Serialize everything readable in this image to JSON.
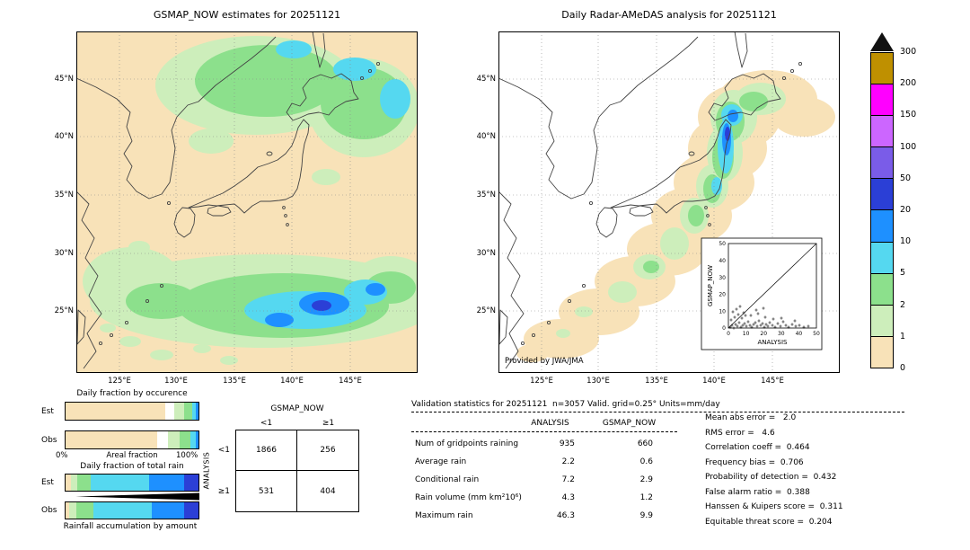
{
  "left_map": {
    "title": "GSMAP_NOW estimates for 20251121",
    "lat_ticks": [
      "45°N",
      "40°N",
      "35°N",
      "30°N",
      "25°N"
    ],
    "lon_ticks": [
      "125°E",
      "130°E",
      "135°E",
      "140°E",
      "145°E"
    ]
  },
  "right_map": {
    "title": "Daily Radar-AMeDAS analysis for 20251121",
    "credit": "Provided by JWA/JMA",
    "lat_ticks": [
      "45°N",
      "40°N",
      "35°N",
      "30°N",
      "25°N"
    ],
    "lon_ticks": [
      "125°E",
      "130°E",
      "135°E",
      "140°E",
      "145°E"
    ],
    "inset": {
      "xlabel": "ANALYSIS",
      "ylabel": "GSMAP_NOW",
      "x_ticks": [
        "0",
        "10",
        "20",
        "30",
        "40",
        "50"
      ],
      "y_ticks": [
        "0",
        "10",
        "20",
        "30",
        "40",
        "50"
      ]
    }
  },
  "colorbar": {
    "levels": [
      "300",
      "200",
      "150",
      "100",
      "50",
      "20",
      "10",
      "5",
      "2",
      "1",
      "0"
    ],
    "colors": [
      "#BF9000",
      "#FF00FF",
      "#CC66FF",
      "#7A5CE8",
      "#2B3FD6",
      "#1E90FF",
      "#55D8F0",
      "#8CE08C",
      "#CDEEBB",
      "#F8E2B8"
    ]
  },
  "occurrence": {
    "title": "Daily fraction by occurence",
    "row_labels": [
      "Est",
      "Obs"
    ],
    "x_left": "0%",
    "x_center": "Areal fraction",
    "x_right": "100%",
    "est_segments": [
      {
        "pct": 75,
        "color": "#F8E2B8"
      },
      {
        "pct": 7,
        "color": "#FFFFFF",
        "hatch": true
      },
      {
        "pct": 7,
        "color": "#CDEEBB"
      },
      {
        "pct": 6,
        "color": "#8CE08C"
      },
      {
        "pct": 3,
        "color": "#55D8F0"
      },
      {
        "pct": 2,
        "color": "#1E90FF"
      }
    ],
    "obs_segments": [
      {
        "pct": 69,
        "color": "#F8E2B8"
      },
      {
        "pct": 8,
        "color": "#FFFFFF",
        "hatch": true
      },
      {
        "pct": 9,
        "color": "#CDEEBB"
      },
      {
        "pct": 8,
        "color": "#8CE08C"
      },
      {
        "pct": 4,
        "color": "#55D8F0"
      },
      {
        "pct": 2,
        "color": "#1E90FF"
      }
    ]
  },
  "total_rain": {
    "title": "Daily fraction of total rain",
    "row_labels": [
      "Est",
      "Obs"
    ],
    "footer": "Rainfall accumulation by amount",
    "est_segments": [
      {
        "pct": 4,
        "color": "#F8E2B8"
      },
      {
        "pct": 5,
        "color": "#CDEEBB"
      },
      {
        "pct": 10,
        "color": "#8CE08C"
      },
      {
        "pct": 44,
        "color": "#55D8F0"
      },
      {
        "pct": 26,
        "color": "#1E90FF"
      },
      {
        "pct": 11,
        "color": "#2B3FD6"
      }
    ],
    "obs_segments": [
      {
        "pct": 3,
        "color": "#F8E2B8"
      },
      {
        "pct": 5,
        "color": "#CDEEBB"
      },
      {
        "pct": 13,
        "color": "#8CE08C"
      },
      {
        "pct": 44,
        "color": "#55D8F0"
      },
      {
        "pct": 24,
        "color": "#1E90FF"
      },
      {
        "pct": 11,
        "color": "#2B3FD6"
      }
    ]
  },
  "contingency": {
    "title": "GSMAP_NOW",
    "row_axis_label": "ANALYSIS",
    "col_labels": [
      "<1",
      "≥1"
    ],
    "row_labels": [
      "<1",
      "≥1"
    ],
    "cells": [
      [
        "1866",
        "256"
      ],
      [
        "531",
        "404"
      ]
    ]
  },
  "stats": {
    "header": "Validation statistics for 20251121  n=3057 Valid. grid=0.25° Units=mm/day",
    "col_headers": [
      "ANALYSIS",
      "GSMAP_NOW"
    ],
    "rows": [
      {
        "label": "Num of gridpoints raining",
        "analysis": "935",
        "gsmap": "660"
      },
      {
        "label": "Average rain",
        "analysis": "2.2",
        "gsmap": "0.6"
      },
      {
        "label": "Conditional rain",
        "analysis": "7.2",
        "gsmap": "2.9"
      },
      {
        "label": "Rain volume (mm km²10⁶)",
        "analysis": "4.3",
        "gsmap": "1.2"
      },
      {
        "label": "Maximum rain",
        "analysis": "46.3",
        "gsmap": "9.9"
      }
    ],
    "side": [
      "Mean abs error =   2.0",
      "RMS error =   4.6",
      "Correlation coeff =  0.464",
      "Frequency bias =  0.706",
      "Probability of detection =  0.432",
      "False alarm ratio =  0.388",
      "Hanssen & Kuipers score =  0.311",
      "Equitable threat score =  0.204"
    ]
  },
  "chart_data": [
    {
      "type": "heatmap",
      "title": "GSMAP_NOW estimates for 20251121",
      "units": "mm/day",
      "xlabel": "longitude",
      "ylabel": "latitude",
      "x_ticks": [
        "125°E",
        "130°E",
        "135°E",
        "140°E",
        "145°E"
      ],
      "y_ticks": [
        "45°N",
        "40°N",
        "35°N",
        "30°N",
        "25°N"
      ],
      "levels": [
        0,
        1,
        2,
        5,
        10,
        20,
        50,
        100,
        150,
        200,
        300
      ],
      "note": "Satellite rain map: broad 1-10 mm/day area over the Sea of Japan and Hokkaido with 5-10 cores, and a heavy rain band across 25-30N south of Japan with 20-50 mm/day cores"
    },
    {
      "type": "heatmap",
      "title": "Daily Radar-AMeDAS analysis for 20251121",
      "units": "mm/day",
      "x_ticks": [
        "125°E",
        "130°E",
        "135°E",
        "140°E",
        "145°E"
      ],
      "y_ticks": [
        "45°N",
        "40°N",
        "35°N",
        "30°N",
        "25°N"
      ],
      "levels": [
        0,
        1,
        2,
        5,
        10,
        20,
        50,
        100,
        150,
        200,
        300
      ],
      "note": "Radar analysis: rain band along the Japan archipelago, heaviest (20-50 mm/day) over northern Honshu and southern Hokkaido; white = outside radar coverage"
    },
    {
      "type": "scatter",
      "title": "GSMAP_NOW vs ANALYSIS inset",
      "xlabel": "ANALYSIS",
      "ylabel": "GSMAP_NOW",
      "xlim": [
        0,
        50
      ],
      "ylim": [
        0,
        50
      ],
      "note": "gridpoint scatter clusters below GSMAP_NOW=10 for ANALYSIS 0-50; 1:1 diagonal line shown"
    },
    {
      "type": "table",
      "title": "Contingency table ANALYSIS vs GSMAP_NOW (threshold 1 mm/day)",
      "columns": [
        "GSMAP_NOW <1",
        "GSMAP_NOW ≥1"
      ],
      "rows": [
        {
          "label": "ANALYSIS <1",
          "values": [
            1866,
            256
          ]
        },
        {
          "label": "ANALYSIS ≥1",
          "values": [
            531,
            404
          ]
        }
      ]
    },
    {
      "type": "table",
      "title": "Validation statistics for 20251121, n=3057, grid=0.25°, units=mm/day",
      "columns": [
        "ANALYSIS",
        "GSMAP_NOW"
      ],
      "rows": [
        {
          "label": "Num of gridpoints raining",
          "values": [
            935,
            660
          ]
        },
        {
          "label": "Average rain",
          "values": [
            2.2,
            0.6
          ]
        },
        {
          "label": "Conditional rain",
          "values": [
            7.2,
            2.9
          ]
        },
        {
          "label": "Rain volume (mm km²10⁶)",
          "values": [
            4.3,
            1.2
          ]
        },
        {
          "label": "Maximum rain",
          "values": [
            46.3,
            9.9
          ]
        }
      ],
      "scores": {
        "mean_abs_error": 2.0,
        "rms_error": 4.6,
        "correlation_coeff": 0.464,
        "frequency_bias": 0.706,
        "probability_of_detection": 0.432,
        "false_alarm_ratio": 0.388,
        "hanssen_kuipers_score": 0.311,
        "equitable_threat_score": 0.204
      }
    },
    {
      "type": "bar",
      "title": "Daily fraction by occurence (areal fraction, stacked 100%)",
      "categories": [
        "Est",
        "Obs"
      ],
      "series": [
        {
          "name": "Est",
          "values": [
            75,
            7,
            7,
            6,
            3,
            2
          ]
        },
        {
          "name": "Obs",
          "values": [
            69,
            8,
            9,
            8,
            4,
            2
          ]
        }
      ]
    },
    {
      "type": "bar",
      "title": "Daily fraction of total rain (stacked 100%)",
      "categories": [
        "Est",
        "Obs"
      ],
      "series": [
        {
          "name": "Est",
          "values": [
            4,
            5,
            10,
            44,
            26,
            11
          ]
        },
        {
          "name": "Obs",
          "values": [
            3,
            5,
            13,
            44,
            24,
            11
          ]
        }
      ]
    }
  ]
}
